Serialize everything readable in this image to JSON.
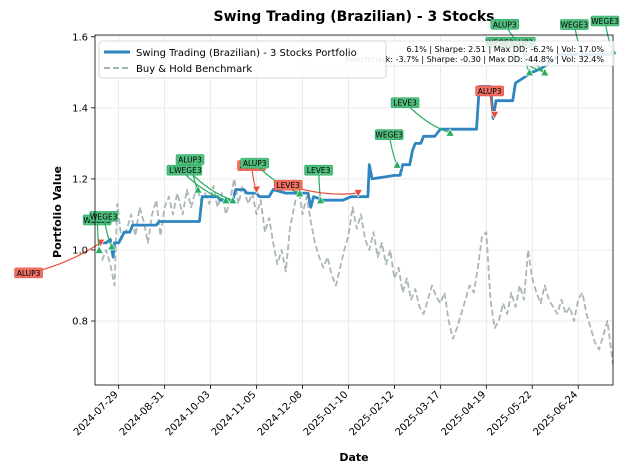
{
  "chart_data": {
    "type": "line",
    "title": "Swing Trading (Brazilian) - 3 Stocks",
    "xlabel": "Date",
    "ylabel": "Portfolio Value",
    "ylim": [
      0.62,
      1.605
    ],
    "grid": true,
    "legend_position": "top-left",
    "x_ticks": [
      "2024-07-29",
      "2024-08-31",
      "2024-10-03",
      "2024-11-05",
      "2024-12-08",
      "2025-01-10",
      "2025-02-12",
      "2025-03-17",
      "2025-04-19",
      "2025-05-22",
      "2025-06-24"
    ],
    "y_ticks": [
      "0.8",
      "1.0",
      "1.2",
      "1.4",
      "1.6"
    ],
    "x_start": "2024-07-12",
    "x_end": "2025-07-19",
    "series": [
      {
        "name": "Swing Trading (Brazilian) - 3 Stocks Portfolio",
        "color": "#2e86c1",
        "style": "solid",
        "points": [
          [
            "2024-07-17",
            1.02
          ],
          [
            "2024-07-20",
            1.02
          ],
          [
            "2024-07-23",
            1.03
          ],
          [
            "2024-07-25",
            0.98
          ],
          [
            "2024-07-26",
            1.02
          ],
          [
            "2024-07-29",
            1.02
          ],
          [
            "2024-08-02",
            1.05
          ],
          [
            "2024-08-06",
            1.05
          ],
          [
            "2024-08-08",
            1.07
          ],
          [
            "2024-08-25",
            1.07
          ],
          [
            "2024-08-27",
            1.08
          ],
          [
            "2024-09-25",
            1.08
          ],
          [
            "2024-09-27",
            1.15
          ],
          [
            "2024-10-08",
            1.15
          ],
          [
            "2024-10-10",
            1.14
          ],
          [
            "2024-10-19",
            1.14
          ],
          [
            "2024-10-21",
            1.17
          ],
          [
            "2024-10-27",
            1.17
          ],
          [
            "2024-10-29",
            1.16
          ],
          [
            "2024-11-05",
            1.16
          ],
          [
            "2024-11-07",
            1.15
          ],
          [
            "2024-11-14",
            1.15
          ],
          [
            "2024-11-17",
            1.17
          ],
          [
            "2024-11-26",
            1.16
          ],
          [
            "2024-12-03",
            1.16
          ],
          [
            "2024-12-12",
            1.16
          ],
          [
            "2024-12-14",
            1.12
          ],
          [
            "2024-12-16",
            1.15
          ],
          [
            "2024-12-23",
            1.14
          ],
          [
            "2024-12-27",
            1.14
          ],
          [
            "2025-01-06",
            1.14
          ],
          [
            "2025-01-12",
            1.15
          ],
          [
            "2025-01-21",
            1.15
          ],
          [
            "2025-01-24",
            1.15
          ],
          [
            "2025-01-25",
            1.24
          ],
          [
            "2025-01-27",
            1.2
          ],
          [
            "2025-02-12",
            1.21
          ],
          [
            "2025-02-16",
            1.21
          ],
          [
            "2025-02-18",
            1.24
          ],
          [
            "2025-02-23",
            1.24
          ],
          [
            "2025-02-25",
            1.28
          ],
          [
            "2025-02-27",
            1.3
          ],
          [
            "2025-03-03",
            1.3
          ],
          [
            "2025-03-05",
            1.32
          ],
          [
            "2025-03-13",
            1.32
          ],
          [
            "2025-03-17",
            1.34
          ],
          [
            "2025-04-06",
            1.34
          ],
          [
            "2025-04-12",
            1.34
          ],
          [
            "2025-04-14",
            1.46
          ],
          [
            "2025-04-22",
            1.46
          ],
          [
            "2025-04-24",
            1.37
          ],
          [
            "2025-04-26",
            1.42
          ],
          [
            "2025-05-08",
            1.42
          ],
          [
            "2025-05-10",
            1.47
          ],
          [
            "2025-05-22",
            1.5
          ],
          [
            "2025-05-28",
            1.51
          ],
          [
            "2025-06-05",
            1.53
          ],
          [
            "2025-06-10",
            1.55
          ],
          [
            "2025-06-15",
            1.55
          ],
          [
            "2025-06-19",
            1.55
          ],
          [
            "2025-06-25",
            1.55
          ],
          [
            "2025-07-02",
            1.55
          ],
          [
            "2025-07-09",
            1.55
          ],
          [
            "2025-07-19",
            1.55
          ]
        ]
      },
      {
        "name": "Buy & Hold Benchmark",
        "color": "#95a5a6",
        "style": "dashed",
        "points": [
          [
            "2024-07-17",
            0.97
          ],
          [
            "2024-07-20",
            1.0
          ],
          [
            "2024-07-23",
            0.96
          ],
          [
            "2024-07-26",
            0.9
          ],
          [
            "2024-07-28",
            1.13
          ],
          [
            "2024-07-31",
            1.03
          ],
          [
            "2024-08-04",
            1.06
          ],
          [
            "2024-08-07",
            1.1
          ],
          [
            "2024-08-10",
            1.04
          ],
          [
            "2024-08-13",
            1.12
          ],
          [
            "2024-08-16",
            1.08
          ],
          [
            "2024-08-19",
            1.02
          ],
          [
            "2024-08-22",
            1.1
          ],
          [
            "2024-08-25",
            1.14
          ],
          [
            "2024-08-28",
            1.04
          ],
          [
            "2024-08-31",
            1.12
          ],
          [
            "2024-09-03",
            1.15
          ],
          [
            "2024-09-06",
            1.1
          ],
          [
            "2024-09-09",
            1.16
          ],
          [
            "2024-09-13",
            1.1
          ],
          [
            "2024-09-16",
            1.17
          ],
          [
            "2024-09-19",
            1.12
          ],
          [
            "2024-09-23",
            1.18
          ],
          [
            "2024-09-26",
            1.14
          ],
          [
            "2024-09-29",
            1.16
          ],
          [
            "2024-10-02",
            1.13
          ],
          [
            "2024-10-05",
            1.18
          ],
          [
            "2024-10-08",
            1.12
          ],
          [
            "2024-10-11",
            1.16
          ],
          [
            "2024-10-14",
            1.1
          ],
          [
            "2024-10-17",
            1.14
          ],
          [
            "2024-10-20",
            1.2
          ],
          [
            "2024-10-23",
            1.13
          ],
          [
            "2024-10-26",
            1.18
          ],
          [
            "2024-10-30",
            1.13
          ],
          [
            "2024-11-02",
            1.16
          ],
          [
            "2024-11-05",
            1.1
          ],
          [
            "2024-11-08",
            1.14
          ],
          [
            "2024-11-11",
            1.05
          ],
          [
            "2024-11-14",
            1.09
          ],
          [
            "2024-11-17",
            1.02
          ],
          [
            "2024-11-20",
            0.96
          ],
          [
            "2024-11-23",
            1.0
          ],
          [
            "2024-11-26",
            0.94
          ],
          [
            "2024-11-29",
            1.06
          ],
          [
            "2024-12-02",
            1.12
          ],
          [
            "2024-12-05",
            1.18
          ],
          [
            "2024-12-08",
            1.1
          ],
          [
            "2024-12-11",
            1.15
          ],
          [
            "2024-12-14",
            1.08
          ],
          [
            "2024-12-17",
            1.02
          ],
          [
            "2024-12-20",
            0.98
          ],
          [
            "2024-12-23",
            0.95
          ],
          [
            "2024-12-26",
            0.98
          ],
          [
            "2024-12-29",
            0.93
          ],
          [
            "2025-01-01",
            0.9
          ],
          [
            "2025-01-04",
            0.95
          ],
          [
            "2025-01-07",
            1.0
          ],
          [
            "2025-01-10",
            1.04
          ],
          [
            "2025-01-13",
            1.12
          ],
          [
            "2025-01-16",
            1.06
          ],
          [
            "2025-01-19",
            1.1
          ],
          [
            "2025-01-22",
            1.03
          ],
          [
            "2025-01-25",
            1.0
          ],
          [
            "2025-01-28",
            1.05
          ],
          [
            "2025-01-31",
            0.98
          ],
          [
            "2025-02-03",
            1.02
          ],
          [
            "2025-02-06",
            0.96
          ],
          [
            "2025-02-09",
            1.0
          ],
          [
            "2025-02-12",
            0.92
          ],
          [
            "2025-02-15",
            0.95
          ],
          [
            "2025-02-18",
            0.88
          ],
          [
            "2025-02-21",
            0.92
          ],
          [
            "2025-02-24",
            0.86
          ],
          [
            "2025-02-27",
            0.89
          ],
          [
            "2025-03-02",
            0.84
          ],
          [
            "2025-03-05",
            0.82
          ],
          [
            "2025-03-08",
            0.86
          ],
          [
            "2025-03-11",
            0.9
          ],
          [
            "2025-03-14",
            0.87
          ],
          [
            "2025-03-17",
            0.85
          ],
          [
            "2025-03-20",
            0.88
          ],
          [
            "2025-03-23",
            0.8
          ],
          [
            "2025-03-26",
            0.75
          ],
          [
            "2025-03-29",
            0.78
          ],
          [
            "2025-04-01",
            0.82
          ],
          [
            "2025-04-04",
            0.86
          ],
          [
            "2025-04-07",
            0.9
          ],
          [
            "2025-04-10",
            0.88
          ],
          [
            "2025-04-13",
            0.95
          ],
          [
            "2025-04-16",
            1.04
          ],
          [
            "2025-04-19",
            1.05
          ],
          [
            "2025-04-22",
            0.86
          ],
          [
            "2025-04-25",
            0.78
          ],
          [
            "2025-04-28",
            0.8
          ],
          [
            "2025-05-01",
            0.85
          ],
          [
            "2025-05-04",
            0.82
          ],
          [
            "2025-05-07",
            0.88
          ],
          [
            "2025-05-10",
            0.84
          ],
          [
            "2025-05-13",
            0.9
          ],
          [
            "2025-05-16",
            0.86
          ],
          [
            "2025-05-19",
            1.0
          ],
          [
            "2025-05-22",
            0.92
          ],
          [
            "2025-05-25",
            0.88
          ],
          [
            "2025-05-28",
            0.85
          ],
          [
            "2025-05-31",
            0.9
          ],
          [
            "2025-06-03",
            0.86
          ],
          [
            "2025-06-06",
            0.84
          ],
          [
            "2025-06-09",
            0.82
          ],
          [
            "2025-06-12",
            0.86
          ],
          [
            "2025-06-15",
            0.82
          ],
          [
            "2025-06-18",
            0.84
          ],
          [
            "2025-06-21",
            0.8
          ],
          [
            "2025-06-24",
            0.86
          ],
          [
            "2025-06-27",
            0.88
          ],
          [
            "2025-06-30",
            0.82
          ],
          [
            "2025-07-03",
            0.78
          ],
          [
            "2025-07-06",
            0.74
          ],
          [
            "2025-07-09",
            0.72
          ],
          [
            "2025-07-12",
            0.76
          ],
          [
            "2025-07-15",
            0.8
          ],
          [
            "2025-07-19",
            0.68
          ]
        ]
      }
    ],
    "stats": [
      "6.1% | Sharpe: 2.51 | Max DD: -6.2% | Vol: 17.0%",
      "Benchmark: -3.7% | Sharpe: -0.30 | Max DD: -44.8% | Vol: 32.4%"
    ],
    "annotations": [
      {
        "label": "ALUP3",
        "date": "2024-07-16",
        "value": 1.02,
        "action": "sell",
        "label_pos": "left-low"
      },
      {
        "label": "WEGE3",
        "date": "2024-07-15",
        "value": 1.0,
        "action": "buy",
        "label_pos": "up-right"
      },
      {
        "label": "WEGE3",
        "date": "2024-07-24",
        "value": 1.01,
        "action": "buy",
        "label_pos": "up"
      },
      {
        "label": "ALUP3",
        "date": "2024-09-24",
        "value": 1.17,
        "action": "buy",
        "label_pos": "up"
      },
      {
        "label": "LEVE3",
        "date": "2024-10-14",
        "value": 1.14,
        "action": "buy",
        "label_pos": "up-left"
      },
      {
        "label": "WEGE3",
        "date": "2024-10-19",
        "value": 1.14,
        "action": "buy",
        "label_pos": "up-left"
      },
      {
        "label": "ALUP3",
        "date": "2024-11-05",
        "value": 1.17,
        "action": "sell",
        "label_pos": "down"
      },
      {
        "label": "ALUP3",
        "date": "2024-12-06",
        "value": 1.16,
        "action": "buy",
        "label_pos": "up-left"
      },
      {
        "label": "LEVE3",
        "date": "2024-12-21",
        "value": 1.14,
        "action": "buy",
        "label_pos": "up-right"
      },
      {
        "label": "LEVE3",
        "date": "2025-01-17",
        "value": 1.16,
        "action": "sell",
        "label_pos": "down-left"
      },
      {
        "label": "WEGE3",
        "date": "2025-02-14",
        "value": 1.24,
        "action": "buy",
        "label_pos": "up"
      },
      {
        "label": "LEVE3",
        "date": "2025-03-24",
        "value": 1.33,
        "action": "buy",
        "label_pos": "up-left"
      },
      {
        "label": "ALUP3",
        "date": "2025-04-25",
        "value": 1.38,
        "action": "sell",
        "label_pos": "down"
      },
      {
        "label": "ALUP3",
        "date": "2025-05-20",
        "value": 1.5,
        "action": "buy",
        "label_pos": "up"
      },
      {
        "label": "WEGE3",
        "date": "2025-05-31",
        "value": 1.5,
        "action": "buy",
        "label_pos": "up-left"
      },
      {
        "label": "ALUP3",
        "date": "2025-05-31",
        "value": 1.5,
        "action": "buy",
        "label_pos": "up-left-high"
      },
      {
        "label": "WEGE3",
        "date": "2025-06-27",
        "value": 1.55,
        "action": "buy",
        "label_pos": "up"
      },
      {
        "label": "WEGE3",
        "date": "2025-07-19",
        "value": 1.56,
        "action": "buy",
        "label_pos": "up"
      }
    ],
    "colors": {
      "buy": "#27ae60",
      "sell": "#e74c3c",
      "buy_box": "#52be80",
      "sell_box": "#ec7063"
    }
  }
}
